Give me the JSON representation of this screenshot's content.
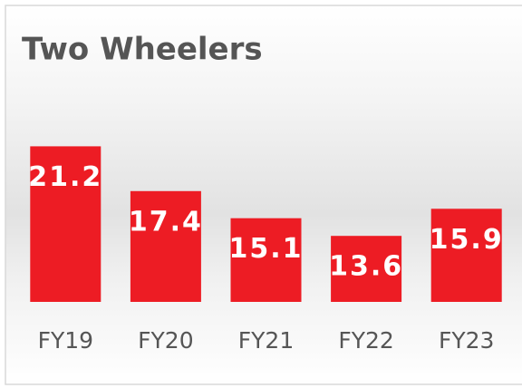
{
  "chart_data": {
    "type": "bar",
    "title": "Two Wheelers",
    "categories": [
      "FY19",
      "FY20",
      "FY21",
      "FY22",
      "FY23"
    ],
    "values": [
      21.2,
      17.4,
      15.1,
      13.6,
      15.9
    ],
    "color": "#ed1c24",
    "ylim": [
      8,
      24
    ]
  }
}
